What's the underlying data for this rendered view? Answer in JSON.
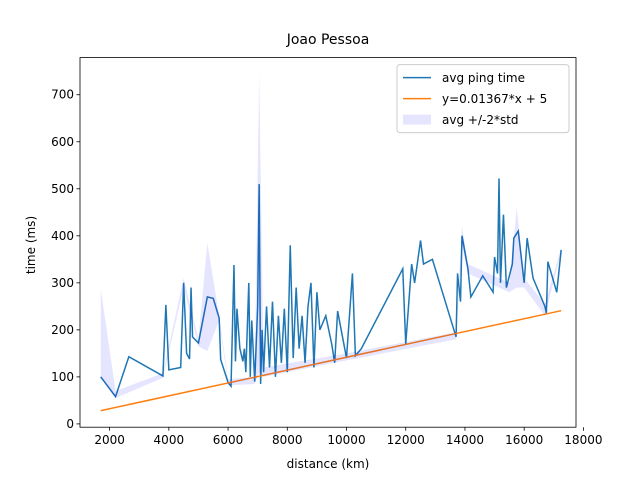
{
  "chart_data": {
    "type": "line",
    "title": "Joao Pessoa",
    "x_label": "distance (km)",
    "y_label": "time (ms)",
    "xlim": [
      1000,
      17750
    ],
    "ylim": [
      -7,
      779
    ],
    "xticks": [
      2000,
      4000,
      6000,
      8000,
      10000,
      12000,
      14000,
      16000,
      18000
    ],
    "yticks": [
      0,
      100,
      200,
      300,
      400,
      500,
      600,
      700
    ],
    "legend": "upper right",
    "series": [
      {
        "name": "avg ping time",
        "color": "#1f77b4",
        "x": [
          1700,
          2200,
          2650,
          3800,
          3900,
          4000,
          4400,
          4500,
          4600,
          4700,
          4750,
          4800,
          5000,
          5300,
          5500,
          5700,
          5750,
          6000,
          6100,
          6200,
          6250,
          6300,
          6400,
          6500,
          6550,
          6600,
          6700,
          6750,
          6800,
          6900,
          7000,
          7050,
          7100,
          7150,
          7200,
          7300,
          7400,
          7500,
          7600,
          7700,
          7800,
          7900,
          8000,
          8100,
          8200,
          8300,
          8400,
          8500,
          8600,
          8700,
          8800,
          8900,
          9000,
          9100,
          9300,
          9500,
          9600,
          9700,
          10000,
          10200,
          10300,
          10500,
          11900,
          12000,
          12200,
          12300,
          12500,
          12600,
          12900,
          13700,
          13750,
          13850,
          13900,
          14100,
          14200,
          14600,
          14950,
          15000,
          15100,
          15150,
          15200,
          15300,
          15400,
          15600,
          15650,
          15800,
          16000,
          16100,
          16300,
          16700,
          16750,
          16800,
          17100,
          17250
        ],
        "values": [
          100,
          58,
          143,
          102,
          253,
          115,
          120,
          300,
          150,
          138,
          290,
          185,
          172,
          270,
          267,
          225,
          137,
          88,
          80,
          338,
          133,
          245,
          160,
          133,
          160,
          110,
          300,
          100,
          220,
          90,
          250,
          510,
          85,
          200,
          110,
          250,
          120,
          260,
          100,
          230,
          130,
          245,
          110,
          380,
          140,
          290,
          160,
          230,
          130,
          250,
          300,
          120,
          280,
          200,
          230,
          170,
          130,
          240,
          140,
          320,
          145,
          160,
          330,
          170,
          340,
          300,
          390,
          340,
          350,
          185,
          320,
          260,
          400,
          330,
          270,
          315,
          280,
          355,
          320,
          522,
          300,
          445,
          290,
          340,
          395,
          410,
          300,
          395,
          310,
          250,
          235,
          345,
          280,
          370
        ]
      },
      {
        "name": "y=0.01367*x + 5",
        "color": "#ff7f0e",
        "x": [
          1700,
          17250
        ],
        "values": [
          28.24,
          240.81
        ]
      },
      {
        "name": "avg +/-2*std",
        "color": "#0000ff",
        "alpha": 0.1,
        "band": true,
        "x": [
          1700,
          2200,
          3800,
          4500,
          5000,
          5300,
          5700,
          6000,
          6900,
          7050,
          7200,
          10000,
          13700,
          13900,
          14100,
          15500,
          15750,
          16000,
          16700,
          17250
        ],
        "upper": [
          288,
          70,
          108,
          310,
          180,
          385,
          230,
          95,
          100,
          745,
          120,
          150,
          195,
          420,
          340,
          300,
          460,
          310,
          255,
          375
        ],
        "lower": [
          100,
          55,
          98,
          290,
          165,
          155,
          220,
          82,
          85,
          110,
          100,
          135,
          180,
          380,
          320,
          280,
          290,
          290,
          230,
          365
        ]
      }
    ]
  }
}
